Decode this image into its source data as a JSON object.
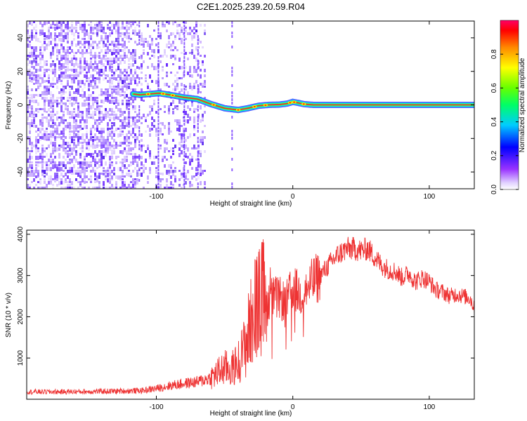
{
  "title": "C2E1.2025.239.20.59.R04",
  "chart_data": [
    {
      "type": "heatmap",
      "xlabel": "Height of straight line (km)",
      "ylabel": "Frequency (Hz)",
      "xlim": [
        -195,
        133
      ],
      "ylim": [
        -50,
        50
      ],
      "xticks": [
        -100,
        0,
        100
      ],
      "yticks": [
        -40,
        -20,
        0,
        20,
        40
      ],
      "xtick_labels": [
        "-100",
        "0",
        "100"
      ],
      "ytick_labels": [
        "-40",
        "-20",
        "0",
        "20",
        "40"
      ],
      "colorbar": {
        "label": "Normalized spectral amplitude",
        "range": [
          0.0,
          1.0
        ],
        "ticks": [
          0.0,
          0.2,
          0.4,
          0.6,
          0.8
        ],
        "tick_labels": [
          "0.0",
          "0.2",
          "0.4",
          "0.6",
          "0.8"
        ]
      },
      "ridge": {
        "name": "Doppler ridge",
        "x": [
          -117,
          -112,
          -105,
          -98,
          -90,
          -80,
          -70,
          -60,
          -50,
          -40,
          -33,
          -25,
          -18,
          -10,
          -4,
          0,
          4,
          8,
          15,
          40,
          80,
          100,
          133
        ],
        "y": [
          6.5,
          6.0,
          6.5,
          7.0,
          6.0,
          4.5,
          3.5,
          0.5,
          -2.0,
          -3.0,
          -2.0,
          -0.5,
          0.0,
          0.2,
          0.8,
          1.8,
          1.2,
          0.5,
          0.0,
          0.0,
          0.0,
          0.0,
          0.0
        ]
      }
    },
    {
      "type": "line",
      "xlabel": "Height of straight line (km)",
      "ylabel": "SNR (10 * v/v)",
      "xlim": [
        -195,
        133
      ],
      "ylim": [
        0,
        4100
      ],
      "xticks": [
        -100,
        0,
        100
      ],
      "yticks": [
        1000,
        2000,
        3000,
        4000
      ],
      "xtick_labels": [
        "-100",
        "0",
        "100"
      ],
      "ytick_labels": [
        "1000",
        "2000",
        "3000",
        "4000"
      ],
      "series": [
        {
          "name": "SNR",
          "color": "#ee3333",
          "x": [
            -195,
            -170,
            -140,
            -110,
            -100,
            -90,
            -80,
            -70,
            -60,
            -55,
            -50,
            -45,
            -40,
            -35,
            -30,
            -25,
            -20,
            -15,
            -10,
            -5,
            0,
            5,
            10,
            15,
            20,
            25,
            30,
            35,
            40,
            45,
            50,
            55,
            60,
            65,
            70,
            75,
            80,
            85,
            90,
            95,
            100,
            105,
            110,
            115,
            120,
            125,
            130,
            133
          ],
          "y": [
            180,
            180,
            190,
            210,
            260,
            330,
            380,
            420,
            520,
            640,
            760,
            720,
            900,
            1300,
            2000,
            2350,
            2500,
            2450,
            2450,
            2350,
            2700,
            2550,
            2650,
            2850,
            3000,
            3200,
            3400,
            3550,
            3650,
            3650,
            3600,
            3650,
            3450,
            3250,
            3150,
            3100,
            2950,
            3050,
            2850,
            2950,
            2850,
            2650,
            2600,
            2500,
            2550,
            2500,
            2450,
            2200
          ]
        }
      ]
    }
  ]
}
